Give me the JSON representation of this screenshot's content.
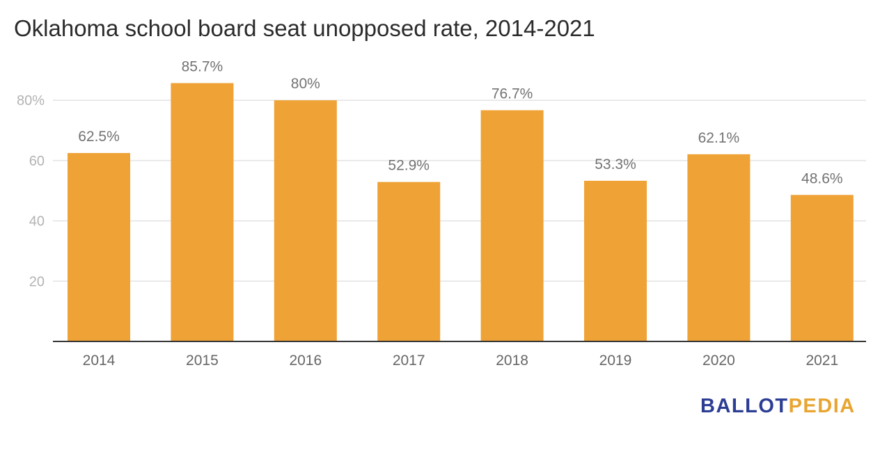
{
  "title": "Oklahoma school board seat unopposed rate, 2014-2021",
  "logo": {
    "part1": "BALLOT",
    "part2": "PEDIA",
    "color1": "#2c3e94",
    "color2": "#e8a531"
  },
  "colors": {
    "bar": "#efa236",
    "grid": "#e3e3e3",
    "axis": "#333333",
    "tick_text": "#b3b3b3",
    "category_text": "#666666",
    "label_text": "#737373"
  },
  "chart_data": {
    "type": "bar",
    "title": "Oklahoma school board seat unopposed rate, 2014-2021",
    "xlabel": "",
    "ylabel": "",
    "ylim": [
      0,
      100
    ],
    "grid": true,
    "categories": [
      "2014",
      "2015",
      "2016",
      "2017",
      "2018",
      "2019",
      "2020",
      "2021"
    ],
    "values": [
      62.5,
      85.7,
      80,
      52.9,
      76.7,
      53.3,
      62.1,
      48.6
    ],
    "data_labels": [
      "62.5%",
      "85.7%",
      "80%",
      "52.9%",
      "76.7%",
      "53.3%",
      "62.1%",
      "48.6%"
    ],
    "y_ticks": [
      20,
      40,
      60,
      80
    ],
    "y_tick_labels": [
      "20",
      "40",
      "60",
      "80%"
    ]
  }
}
